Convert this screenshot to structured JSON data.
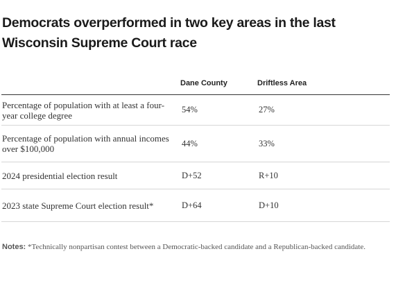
{
  "title": "Democrats overperformed in two key areas in the last Wisconsin Supreme Court race",
  "table": {
    "headers": [
      "",
      "Dane County",
      "Driftless Area"
    ],
    "rows": [
      {
        "label": "Percentage of population with at least a four-year college degree",
        "dane": "54%",
        "driftless": "27%"
      },
      {
        "label": "Percentage of population with annual incomes over $100,000",
        "dane": "44%",
        "driftless": "33%"
      },
      {
        "label": "2024 presidential election result",
        "dane": "D+52",
        "driftless": "R+10"
      },
      {
        "label": "2023 state Supreme Court election result*",
        "dane": "D+64",
        "driftless": "D+10"
      }
    ]
  },
  "notes": {
    "label": "Notes:",
    "text": "*Technically nonpartisan contest between a Democratic-backed candidate and a Republican-backed candidate."
  }
}
